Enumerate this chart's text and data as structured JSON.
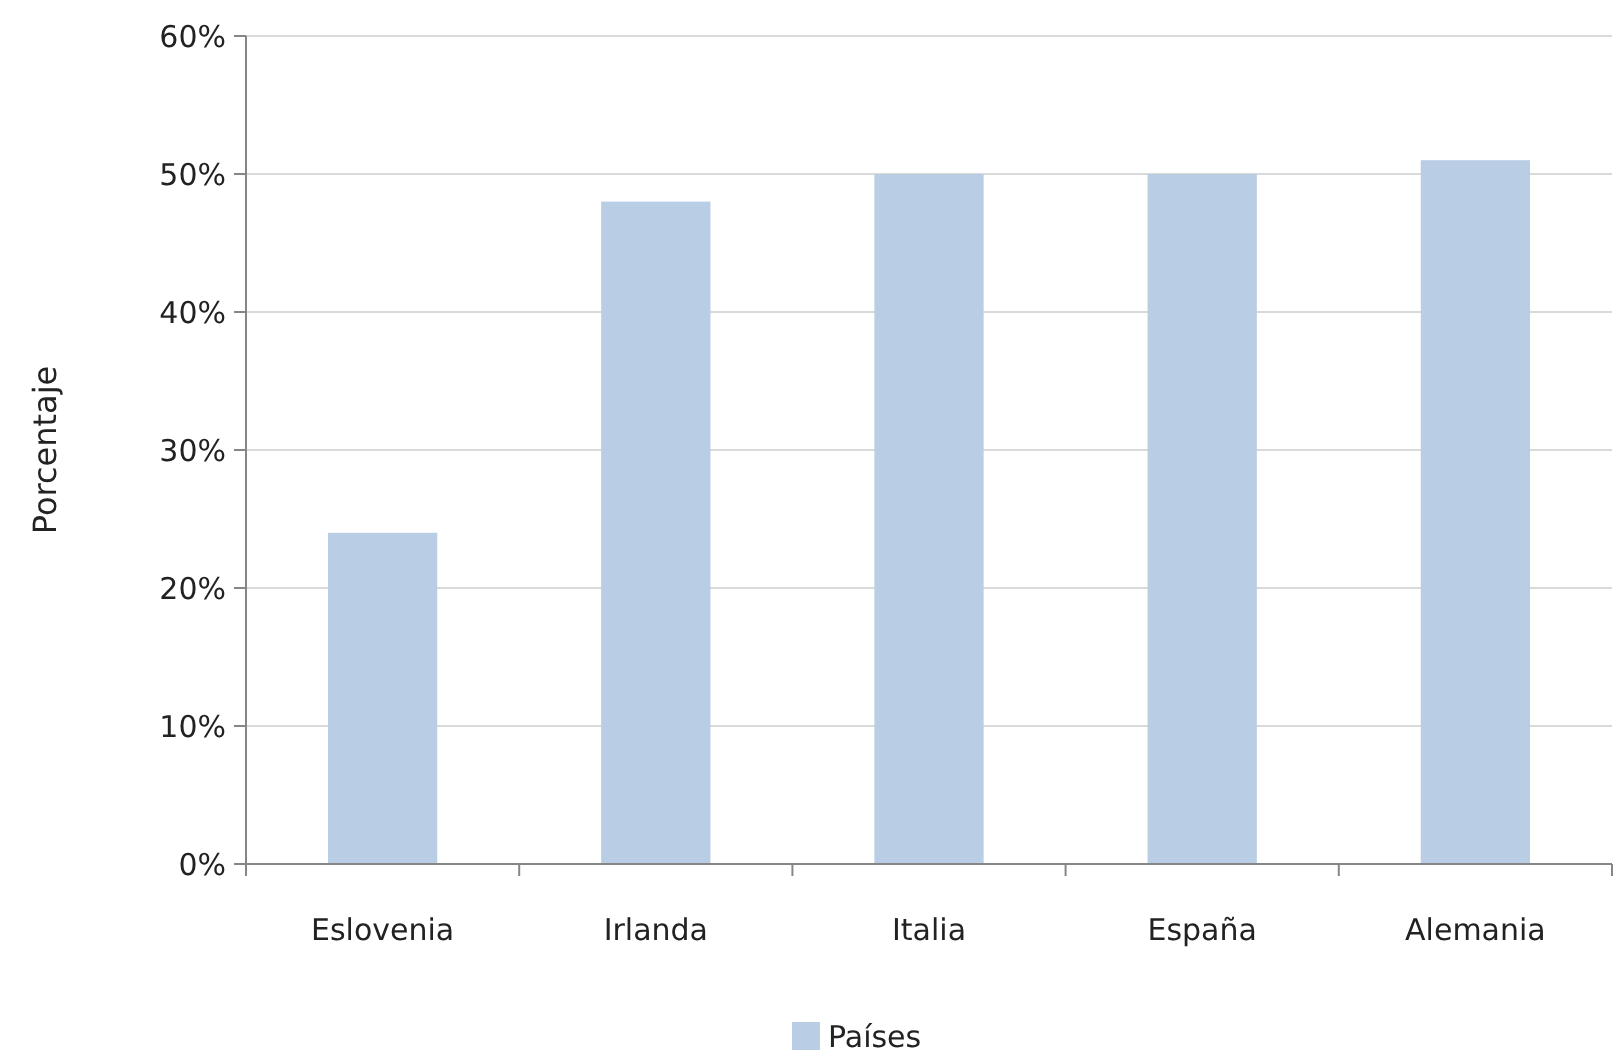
{
  "chart_data": {
    "type": "bar",
    "ylabel": "Porcentaje",
    "categories": [
      "Eslovenia",
      "Irlanda",
      "Italia",
      "España",
      "Alemania"
    ],
    "series": [
      {
        "name": "Países",
        "color": "#b9cde5",
        "values": [
          24,
          48,
          50,
          50,
          51
        ]
      }
    ],
    "ylim": [
      0,
      60
    ],
    "yticks": [
      {
        "value": 0,
        "label": "0%"
      },
      {
        "value": 10,
        "label": "10%"
      },
      {
        "value": 20,
        "label": "20%"
      },
      {
        "value": 30,
        "label": "30%"
      },
      {
        "value": 40,
        "label": "40%"
      },
      {
        "value": 50,
        "label": "50%"
      },
      {
        "value": 60,
        "label": "60%"
      }
    ],
    "grid": "y",
    "legend": "bottom"
  }
}
